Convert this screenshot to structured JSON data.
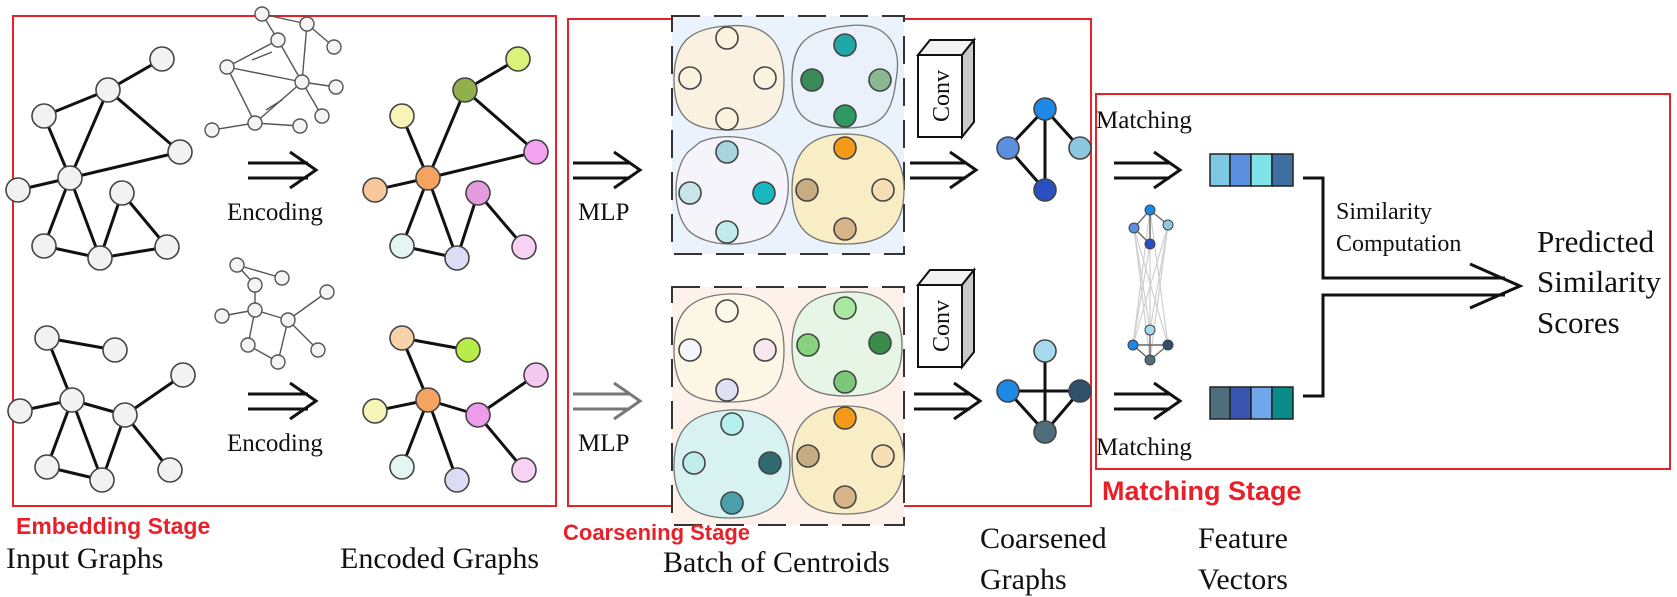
{
  "stages": {
    "embedding": "Embedding Stage",
    "coarsening": "Coarsening Stage",
    "matching": "Matching Stage"
  },
  "captions": {
    "input_graphs": "Input Graphs",
    "encoded_graphs": "Encoded Graphs",
    "batch_of_centroids": "Batch of Centroids",
    "coarsened_graphs_line1": "Coarsened",
    "coarsened_graphs_line2": "Graphs",
    "feature_vectors_line1": "Feature",
    "feature_vectors_line2": "Vectors"
  },
  "labels": {
    "encoding_top": "Encoding",
    "encoding_bottom": "Encoding",
    "mlp_top": "MLP",
    "mlp_bottom": "MLP",
    "conv_top": "Conv",
    "conv_bottom": "Conv",
    "matching_top": "Matching",
    "matching_bottom": "Matching",
    "similarity_line1": "Similarity",
    "similarity_line2": "Computation",
    "predicted_line1": "Predicted",
    "predicted_line2": "Similarity",
    "predicted_line3": "Scores"
  },
  "colors": {
    "stage_box": "#e8202a",
    "node_default": "#f2f2f2",
    "encoded_center": "#f4a460",
    "batch_top_bg": "#eaf3fb",
    "batch_bottom_bg": "#fdf1ea",
    "feature_top": [
      "#7ec8e3",
      "#5b8fe0",
      "#7fe3e8",
      "#3f6fa0"
    ],
    "feature_bottom": [
      "#4f6e7c",
      "#3a55b0",
      "#6fa8e8",
      "#0b8a8a"
    ]
  }
}
